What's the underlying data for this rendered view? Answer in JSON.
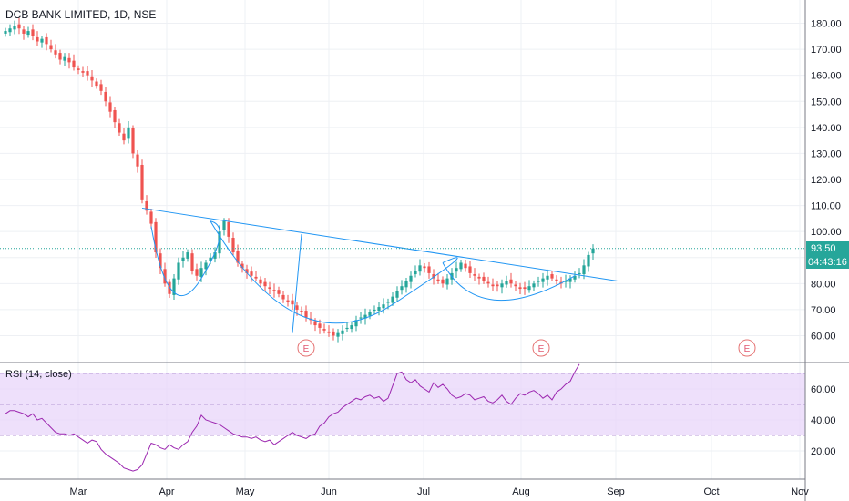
{
  "header": {
    "title": "DCB BANK LIMITED, 1D, NSE"
  },
  "rsi_header": {
    "title": "RSI (14, close)"
  },
  "earnings": {
    "label": "E"
  },
  "price_tag": {
    "value": "93.50",
    "countdown": "04:43:16"
  },
  "colors": {
    "up": "#26a69a",
    "down": "#ef5350",
    "trend": "#2196f3",
    "rsi_line": "#9c27b0",
    "rsi_band": "#e8d6fa",
    "earn": "#e57373",
    "price_line": "#26a69a",
    "grid": "#eef0f4"
  },
  "chart_data": [
    {
      "type": "candlestick",
      "title": "DCB BANK LIMITED, 1D, NSE",
      "x_labels": [
        "Mar",
        "Apr",
        "May",
        "Jun",
        "Jul",
        "Aug",
        "Sep",
        "Oct",
        "Nov"
      ],
      "y_ticks": [
        60,
        70,
        80,
        90,
        100,
        110,
        120,
        130,
        140,
        150,
        160,
        170,
        180
      ],
      "ylim": [
        55,
        186
      ],
      "last_price": 93.5,
      "grid": true,
      "closes": [
        177,
        178,
        179,
        178,
        176,
        177,
        175,
        173,
        174,
        172,
        170,
        168,
        166,
        167,
        165,
        163,
        162,
        161,
        160,
        158,
        156,
        154,
        150,
        146,
        142,
        138,
        135,
        140,
        130,
        125,
        112,
        108,
        103,
        92,
        86,
        80,
        76,
        82,
        88,
        90,
        92,
        85,
        83,
        86,
        88,
        90,
        92,
        100,
        104,
        98,
        92,
        88,
        86,
        84,
        83,
        82,
        80,
        79,
        78,
        77,
        76,
        74,
        73,
        72,
        70,
        69,
        67,
        66,
        64,
        63,
        62,
        61,
        60,
        61,
        62,
        63,
        64,
        66,
        67,
        68,
        69,
        70,
        71,
        72,
        73,
        75,
        77,
        79,
        81,
        83,
        85,
        87,
        86,
        84,
        82,
        81,
        80,
        82,
        84,
        86,
        88,
        86,
        84,
        83,
        82,
        81,
        80,
        79,
        79,
        80,
        81,
        80,
        79,
        78,
        78,
        79,
        80,
        81,
        82,
        83,
        82,
        81,
        80,
        81,
        82,
        83,
        84,
        87,
        91,
        93.5
      ],
      "trendlines": [
        {
          "from": [
            0,
            109
          ],
          "to": [
            1,
            81
          ]
        }
      ],
      "earnings_markers": [
        "late-May",
        "mid-Aug",
        "mid-Oct"
      ]
    },
    {
      "type": "line",
      "title": "RSI (14, close)",
      "y_ticks": [
        20,
        40,
        60
      ],
      "band": [
        30,
        70
      ],
      "ylim": [
        3,
        77
      ],
      "values": [
        44,
        46,
        46,
        45,
        44,
        42,
        44,
        40,
        41,
        38,
        35,
        32,
        31,
        31,
        30,
        31,
        29,
        27,
        25,
        27,
        26,
        21,
        18,
        16,
        14,
        12,
        9,
        8,
        7,
        8,
        11,
        18,
        25,
        24,
        22,
        21,
        24,
        22,
        21,
        24,
        26,
        32,
        36,
        43,
        40,
        39,
        38,
        37,
        35,
        33,
        31,
        30,
        29,
        29,
        28,
        29,
        27,
        26,
        27,
        24,
        26,
        28,
        30,
        32,
        30,
        29,
        28,
        30,
        31,
        36,
        38,
        42,
        44,
        45,
        48,
        50,
        52,
        54,
        53,
        55,
        56,
        54,
        55,
        52,
        54,
        62,
        70,
        71,
        66,
        64,
        66,
        62,
        60,
        58,
        64,
        61,
        63,
        60,
        56,
        54,
        55,
        57,
        56,
        53,
        54,
        55,
        52,
        51,
        53,
        56,
        52,
        50,
        54,
        57,
        56,
        58,
        59,
        57,
        54,
        56,
        53,
        58,
        60,
        63,
        65,
        71,
        76
      ]
    }
  ]
}
